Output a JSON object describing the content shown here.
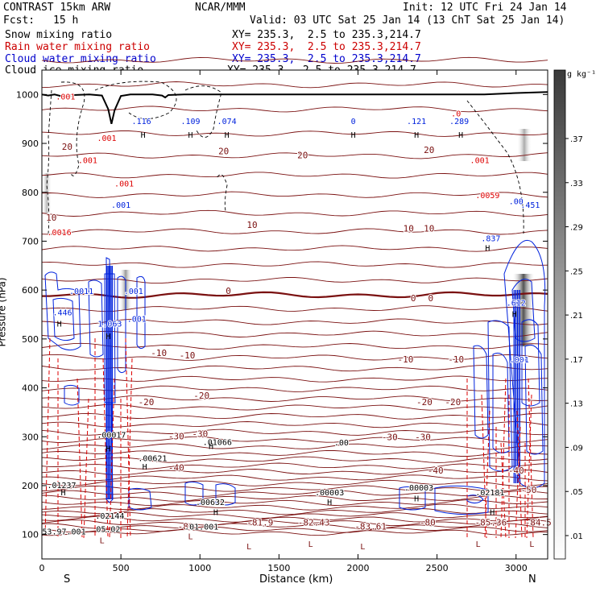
{
  "header": {
    "model": "CONTRAST 15km ARW",
    "center": "NCAR/MMM",
    "init": "Init: 12 UTC Fri 24 Jan 14",
    "fcst_label": "Fcst:",
    "fcst_value": "15 h",
    "valid": "Valid: 03 UTC Sat 25 Jan 14 (13 ChT Sat 25 Jan 14)"
  },
  "fields": [
    {
      "name": "Snow mixing ratio",
      "xy": "XY= 235.3,  2.5 to 235.3,214.7",
      "color": "#000000"
    },
    {
      "name": "Rain water mixing ratio",
      "xy": "XY= 235.3,  2.5 to 235.3,214.7",
      "color": "#cc0000"
    },
    {
      "name": "Cloud water mixing ratio",
      "xy": "XY= 235.3,  2.5 to 235.3,214.7",
      "color": "#0000cc"
    },
    {
      "name": "Cloud ice mixing ratio",
      "xy": "XY= 235.3,  2.5 to 235.3,214.7",
      "color": "#000000"
    }
  ],
  "chart_data": {
    "type": "cross-section",
    "xlabel": "Distance (km)",
    "ylabel": "Pressure (hPa)",
    "xlim": [
      0,
      3200
    ],
    "ylim": [
      1050,
      50
    ],
    "x_ticks": [
      0,
      500,
      1000,
      1500,
      2000,
      2500,
      3000
    ],
    "y_ticks": [
      100,
      200,
      300,
      400,
      500,
      600,
      700,
      800,
      900,
      1000
    ],
    "end_labels": {
      "left": "S",
      "right": "N"
    },
    "colorbar": {
      "unit": "g kg⁻¹",
      "ticks": [
        ".01",
        ".05",
        ".09",
        ".13",
        ".17",
        ".21",
        ".25",
        ".29",
        ".33",
        ".37"
      ]
    },
    "temperature_contour_labels": [
      {
        "x": 910,
        "p": 110,
        "text": "-80"
      },
      {
        "x": 1380,
        "p": 118,
        "text": "-81.9"
      },
      {
        "x": 1720,
        "p": 118,
        "text": "-82.43"
      },
      {
        "x": 2080,
        "p": 110,
        "text": "-83.61"
      },
      {
        "x": 2440,
        "p": 118,
        "text": "-80"
      },
      {
        "x": 2840,
        "p": 118,
        "text": "-85.36"
      },
      {
        "x": 3140,
        "p": 118,
        "text": "-84.5"
      },
      {
        "x": 3080,
        "p": 185,
        "text": "-50"
      },
      {
        "x": 3000,
        "p": 225,
        "text": "-40"
      },
      {
        "x": 2490,
        "p": 225,
        "text": "-40"
      },
      {
        "x": 850,
        "p": 230,
        "text": "-40"
      },
      {
        "x": 850,
        "p": 295,
        "text": "-30"
      },
      {
        "x": 1000,
        "p": 300,
        "text": "-30"
      },
      {
        "x": 2200,
        "p": 293,
        "text": "-30"
      },
      {
        "x": 2410,
        "p": 293,
        "text": "-30"
      },
      {
        "x": 660,
        "p": 365,
        "text": "-20"
      },
      {
        "x": 1010,
        "p": 378,
        "text": "-20"
      },
      {
        "x": 2420,
        "p": 365,
        "text": "-20"
      },
      {
        "x": 2600,
        "p": 365,
        "text": "-20"
      },
      {
        "x": 740,
        "p": 465,
        "text": "-10"
      },
      {
        "x": 920,
        "p": 460,
        "text": "-10"
      },
      {
        "x": 2300,
        "p": 452,
        "text": "-10"
      },
      {
        "x": 2620,
        "p": 452,
        "text": "-10"
      },
      {
        "x": 1180,
        "p": 592,
        "text": "0"
      },
      {
        "x": 2350,
        "p": 577,
        "text": "0"
      },
      {
        "x": 2460,
        "p": 577,
        "text": "0"
      },
      {
        "x": 60,
        "p": 742,
        "text": "10"
      },
      {
        "x": 1330,
        "p": 727,
        "text": "10"
      },
      {
        "x": 2320,
        "p": 720,
        "text": "10"
      },
      {
        "x": 2450,
        "p": 720,
        "text": "10"
      },
      {
        "x": 160,
        "p": 887,
        "text": "20"
      },
      {
        "x": 1150,
        "p": 878,
        "text": "20"
      },
      {
        "x": 1650,
        "p": 870,
        "text": "20"
      },
      {
        "x": 2450,
        "p": 880,
        "text": "20"
      }
    ],
    "snow_labels": [
      {
        "x": 140,
        "p": 100,
        "text": "53.97.001"
      },
      {
        "x": 420,
        "p": 105,
        "text": "05.02"
      },
      {
        "x": 430,
        "p": 132,
        "text": ".02144"
      },
      {
        "x": 1010,
        "p": 110,
        "text": ".01.001"
      },
      {
        "x": 1065,
        "p": 160,
        "text": ".00632"
      },
      {
        "x": 1820,
        "p": 180,
        "text": ".00003"
      },
      {
        "x": 2385,
        "p": 190,
        "text": ".00003"
      },
      {
        "x": 2835,
        "p": 180,
        "text": ".02181"
      },
      {
        "x": 125,
        "p": 195,
        "text": ".01237"
      },
      {
        "x": 700,
        "p": 250,
        "text": ".00621"
      },
      {
        "x": 1110,
        "p": 283,
        "text": ".01066"
      },
      {
        "x": 1895,
        "p": 282,
        "text": ".00"
      },
      {
        "x": 440,
        "p": 298,
        "text": ".00017"
      }
    ],
    "cloud_water_labels": [
      {
        "x": 130,
        "p": 548,
        "text": ".446"
      },
      {
        "x": 430,
        "p": 525,
        "text": "1.063"
      },
      {
        "x": 600,
        "p": 535,
        "text": ".001"
      },
      {
        "x": 250,
        "p": 592,
        "text": ".0011"
      },
      {
        "x": 580,
        "p": 592,
        "text": ".001"
      },
      {
        "x": 500,
        "p": 768,
        "text": ".001"
      },
      {
        "x": 3000,
        "p": 568,
        "text": ".612"
      },
      {
        "x": 3020,
        "p": 452,
        "text": ".001"
      },
      {
        "x": 2840,
        "p": 700,
        "text": ".837"
      },
      {
        "x": 3090,
        "p": 768,
        "text": ".451"
      },
      {
        "x": 3000,
        "p": 776,
        "text": ".00"
      },
      {
        "x": 630,
        "p": 940,
        "text": ".116"
      },
      {
        "x": 940,
        "p": 940,
        "text": ".109"
      },
      {
        "x": 1170,
        "p": 940,
        "text": ".074"
      },
      {
        "x": 1970,
        "p": 940,
        "text": "0"
      },
      {
        "x": 2370,
        "p": 940,
        "text": ".121"
      },
      {
        "x": 2640,
        "p": 940,
        "text": ".289"
      }
    ],
    "rain_labels": [
      {
        "x": 110,
        "p": 712,
        "text": ".0016"
      },
      {
        "x": 2820,
        "p": 788,
        "text": ".0059"
      },
      {
        "x": 290,
        "p": 860,
        "text": ".001"
      },
      {
        "x": 2770,
        "p": 860,
        "text": ".001"
      },
      {
        "x": 410,
        "p": 905,
        "text": ".001"
      },
      {
        "x": 150,
        "p": 990,
        "text": ".001"
      },
      {
        "x": 2620,
        "p": 955,
        "text": ".0"
      },
      {
        "x": 520,
        "p": 812,
        "text": ".001"
      }
    ],
    "high_markers": [
      {
        "x": 110,
        "p": 525
      },
      {
        "x": 420,
        "p": 500
      },
      {
        "x": 135,
        "p": 180
      },
      {
        "x": 650,
        "p": 233
      },
      {
        "x": 1070,
        "p": 275
      },
      {
        "x": 1820,
        "p": 160
      },
      {
        "x": 1100,
        "p": 140
      },
      {
        "x": 420,
        "p": 270
      },
      {
        "x": 2370,
        "p": 168
      },
      {
        "x": 2850,
        "p": 140
      },
      {
        "x": 2990,
        "p": 545
      },
      {
        "x": 2820,
        "p": 680
      },
      {
        "x": 640,
        "p": 912
      },
      {
        "x": 940,
        "p": 912
      },
      {
        "x": 1170,
        "p": 912
      },
      {
        "x": 1970,
        "p": 912
      },
      {
        "x": 2370,
        "p": 912
      },
      {
        "x": 2650,
        "p": 912
      }
    ],
    "low_markers": [
      {
        "x": 380,
        "p": 82
      },
      {
        "x": 940,
        "p": 90
      },
      {
        "x": 1310,
        "p": 70
      },
      {
        "x": 1700,
        "p": 75
      },
      {
        "x": 2030,
        "p": 70
      },
      {
        "x": 2760,
        "p": 75
      },
      {
        "x": 3100,
        "p": 75
      }
    ],
    "isotherms_p": [
      1070,
      1020,
      970,
      920,
      875,
      835,
      795,
      757,
      720,
      685,
      652,
      620,
      590,
      562,
      535,
      510,
      485,
      462,
      440,
      418,
      398,
      378,
      360,
      342,
      325,
      309,
      294,
      280,
      266,
      253,
      240,
      228,
      216,
      205,
      194,
      184,
      174,
      165,
      156,
      147,
      139,
      131,
      124,
      117,
      110,
      104
    ],
    "freezing_level_p": 590,
    "terrain": {
      "x": [
        0,
        40,
        80,
        120,
        200,
        300,
        380,
        420,
        440,
        460,
        500,
        560,
        700,
        760,
        780,
        800,
        900,
        1200,
        2000,
        2800,
        3000,
        3200
      ],
      "p": [
        1000,
        998,
        1000,
        997,
        999,
        1000,
        998,
        970,
        940,
        968,
        997,
        1000,
        1000,
        998,
        994,
        999,
        1000,
        1000,
        1000,
        1000,
        1003,
        1005
      ]
    }
  }
}
